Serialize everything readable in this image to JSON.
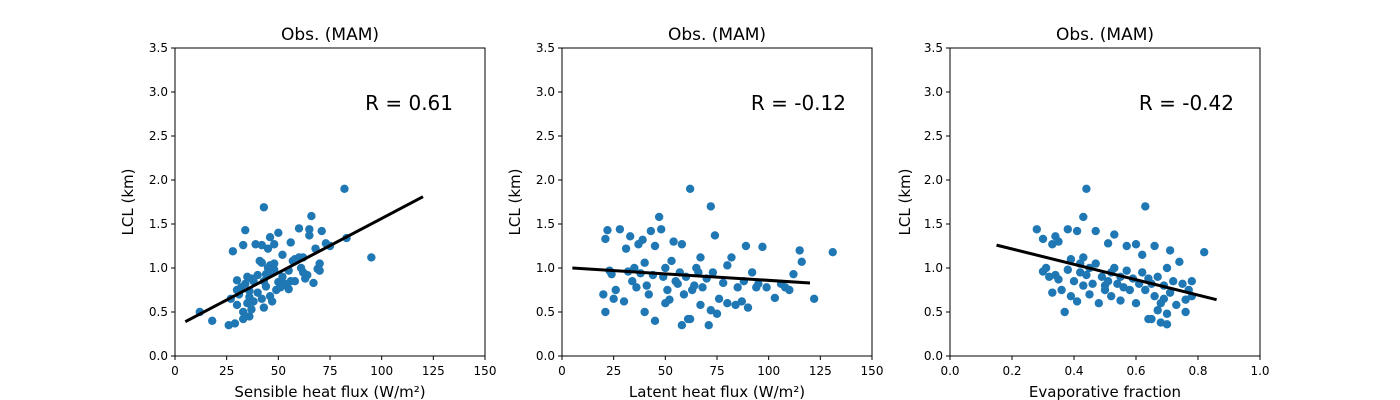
{
  "colors": {
    "marker": "#1f77b4",
    "fit_line": "#000000"
  },
  "chart_data": [
    {
      "type": "scatter",
      "title": "Obs. (MAM)",
      "xlabel": "Sensible heat flux (W/m²)",
      "ylabel": "LCL (km)",
      "xlim": [
        0,
        150
      ],
      "ylim": [
        0,
        3.5
      ],
      "xticks": [
        0,
        25,
        50,
        75,
        100,
        125,
        150
      ],
      "xtick_labels": [
        "0",
        "25",
        "50",
        "75",
        "100",
        "125",
        "150"
      ],
      "yticks": [
        0,
        0.5,
        1,
        1.5,
        2,
        2.5,
        3,
        3.5
      ],
      "ytick_labels": [
        "0.0",
        "0.5",
        "1.0",
        "1.5",
        "2.0",
        "2.5",
        "3.0",
        "3.5"
      ],
      "annotation": "R = 0.61",
      "fit_line": {
        "x": [
          5,
          120
        ],
        "y": [
          0.39,
          1.81
        ]
      },
      "points": [
        [
          12,
          0.5
        ],
        [
          18,
          0.4
        ],
        [
          26,
          0.35
        ],
        [
          27,
          0.65
        ],
        [
          28,
          1.19
        ],
        [
          29,
          0.37
        ],
        [
          30,
          0.58
        ],
        [
          30,
          0.75
        ],
        [
          30,
          0.86
        ],
        [
          31,
          0.7
        ],
        [
          32,
          0.78
        ],
        [
          33,
          1.26
        ],
        [
          33,
          0.42
        ],
        [
          33,
          0.5
        ],
        [
          34,
          1.43
        ],
        [
          34,
          0.82
        ],
        [
          35,
          0.6
        ],
        [
          35,
          0.9
        ],
        [
          36,
          0.45
        ],
        [
          36,
          0.67
        ],
        [
          36,
          0.74
        ],
        [
          37,
          0.53
        ],
        [
          37,
          0.88
        ],
        [
          38,
          0.85
        ],
        [
          38,
          0.62
        ],
        [
          39,
          1.27
        ],
        [
          40,
          0.72
        ],
        [
          40,
          0.92
        ],
        [
          41,
          1.08
        ],
        [
          42,
          0.65
        ],
        [
          42,
          1.06
        ],
        [
          42,
          1.26
        ],
        [
          43,
          0.55
        ],
        [
          43,
          0.85
        ],
        [
          43,
          1.69
        ],
        [
          44,
          0.93
        ],
        [
          44,
          0.79
        ],
        [
          45,
          1.0
        ],
        [
          45,
          1.22
        ],
        [
          46,
          1.35
        ],
        [
          46,
          0.68
        ],
        [
          46,
          1.03
        ],
        [
          47,
          0.62
        ],
        [
          47,
          0.95
        ],
        [
          48,
          0.98
        ],
        [
          48,
          1.27
        ],
        [
          48,
          1.05
        ],
        [
          49,
          0.75
        ],
        [
          50,
          1.4
        ],
        [
          50,
          0.84
        ],
        [
          51,
          0.78
        ],
        [
          52,
          0.9
        ],
        [
          52,
          1.15
        ],
        [
          53,
          0.82
        ],
        [
          54,
          0.8
        ],
        [
          55,
          0.97
        ],
        [
          55,
          0.76
        ],
        [
          56,
          1.29
        ],
        [
          56,
          0.85
        ],
        [
          57,
          1.08
        ],
        [
          58,
          1.1
        ],
        [
          58,
          0.85
        ],
        [
          60,
          1.45
        ],
        [
          60,
          1.12
        ],
        [
          61,
          1.0
        ],
        [
          62,
          0.95
        ],
        [
          62,
          1.12
        ],
        [
          63,
          0.88
        ],
        [
          64,
          0.92
        ],
        [
          65,
          1.44
        ],
        [
          65,
          1.37
        ],
        [
          66,
          1.59
        ],
        [
          67,
          0.83
        ],
        [
          68,
          1.22
        ],
        [
          69,
          0.99
        ],
        [
          70,
          1.05
        ],
        [
          70,
          0.97
        ],
        [
          71,
          1.42
        ],
        [
          73,
          1.28
        ],
        [
          75,
          1.25
        ],
        [
          82,
          1.9
        ],
        [
          83,
          1.34
        ],
        [
          95,
          1.12
        ]
      ]
    },
    {
      "type": "scatter",
      "title": "Obs. (MAM)",
      "xlabel": "Latent heat flux (W/m²)",
      "ylabel": "LCL (km)",
      "xlim": [
        0,
        150
      ],
      "ylim": [
        0,
        3.5
      ],
      "xticks": [
        0,
        25,
        50,
        75,
        100,
        125,
        150
      ],
      "xtick_labels": [
        "0",
        "25",
        "50",
        "75",
        "100",
        "125",
        "150"
      ],
      "yticks": [
        0,
        0.5,
        1,
        1.5,
        2,
        2.5,
        3,
        3.5
      ],
      "ytick_labels": [
        "0.0",
        "0.5",
        "1.0",
        "1.5",
        "2.0",
        "2.5",
        "3.0",
        "3.5"
      ],
      "annotation": "R = -0.12",
      "fit_line": {
        "x": [
          5,
          120
        ],
        "y": [
          1.0,
          0.83
        ]
      },
      "points": [
        [
          20,
          0.7
        ],
        [
          21,
          1.33
        ],
        [
          21,
          0.5
        ],
        [
          22,
          1.43
        ],
        [
          23,
          0.97
        ],
        [
          24,
          0.93
        ],
        [
          25,
          0.65
        ],
        [
          26,
          0.75
        ],
        [
          28,
          1.44
        ],
        [
          30,
          0.62
        ],
        [
          31,
          1.22
        ],
        [
          32,
          0.96
        ],
        [
          33,
          1.36
        ],
        [
          34,
          0.85
        ],
        [
          35,
          1.0
        ],
        [
          36,
          0.78
        ],
        [
          37,
          1.27
        ],
        [
          38,
          0.94
        ],
        [
          39,
          1.32
        ],
        [
          40,
          0.5
        ],
        [
          40,
          1.06
        ],
        [
          41,
          0.8
        ],
        [
          42,
          0.7
        ],
        [
          43,
          1.42
        ],
        [
          44,
          0.92
        ],
        [
          45,
          0.4
        ],
        [
          45,
          1.25
        ],
        [
          47,
          1.58
        ],
        [
          48,
          1.44
        ],
        [
          49,
          0.9
        ],
        [
          50,
          0.6
        ],
        [
          50,
          1.0
        ],
        [
          51,
          0.75
        ],
        [
          52,
          0.64
        ],
        [
          53,
          1.08
        ],
        [
          54,
          1.3
        ],
        [
          55,
          0.85
        ],
        [
          56,
          0.82
        ],
        [
          57,
          0.95
        ],
        [
          58,
          0.35
        ],
        [
          58,
          1.27
        ],
        [
          59,
          0.7
        ],
        [
          60,
          0.9
        ],
        [
          61,
          0.42
        ],
        [
          62,
          0.42
        ],
        [
          62,
          1.9
        ],
        [
          63,
          0.75
        ],
        [
          64,
          0.8
        ],
        [
          65,
          1.0
        ],
        [
          66,
          0.95
        ],
        [
          67,
          1.12
        ],
        [
          67,
          0.58
        ],
        [
          68,
          0.78
        ],
        [
          70,
          0.88
        ],
        [
          71,
          0.35
        ],
        [
          72,
          1.7
        ],
        [
          72,
          0.52
        ],
        [
          73,
          0.95
        ],
        [
          74,
          1.37
        ],
        [
          75,
          0.48
        ],
        [
          76,
          0.65
        ],
        [
          78,
          0.83
        ],
        [
          80,
          0.6
        ],
        [
          80,
          1.03
        ],
        [
          82,
          1.12
        ],
        [
          84,
          0.58
        ],
        [
          85,
          0.78
        ],
        [
          87,
          0.62
        ],
        [
          88,
          0.85
        ],
        [
          89,
          1.25
        ],
        [
          90,
          0.55
        ],
        [
          92,
          0.95
        ],
        [
          94,
          0.78
        ],
        [
          95,
          0.82
        ],
        [
          97,
          1.24
        ],
        [
          99,
          0.78
        ],
        [
          103,
          0.66
        ],
        [
          106,
          0.82
        ],
        [
          108,
          0.78
        ],
        [
          110,
          0.75
        ],
        [
          112,
          0.93
        ],
        [
          115,
          1.2
        ],
        [
          116,
          1.07
        ],
        [
          122,
          0.65
        ],
        [
          131,
          1.18
        ]
      ]
    },
    {
      "type": "scatter",
      "title": "Obs. (MAM)",
      "xlabel": "Evaporative fraction",
      "ylabel": "LCL (km)",
      "xlim": [
        0,
        1
      ],
      "ylim": [
        0,
        3.5
      ],
      "xticks": [
        0,
        0.2,
        0.4,
        0.6,
        0.8,
        1.0
      ],
      "xtick_labels": [
        "0.0",
        "0.2",
        "0.4",
        "0.6",
        "0.8",
        "1.0"
      ],
      "yticks": [
        0,
        0.5,
        1,
        1.5,
        2,
        2.5,
        3,
        3.5
      ],
      "ytick_labels": [
        "0.0",
        "0.5",
        "1.0",
        "1.5",
        "2.0",
        "2.5",
        "3.0",
        "3.5"
      ],
      "annotation": "R = -0.42",
      "fit_line": {
        "x": [
          0.15,
          0.86
        ],
        "y": [
          1.26,
          0.64
        ]
      },
      "points": [
        [
          0.28,
          1.44
        ],
        [
          0.3,
          1.33
        ],
        [
          0.3,
          0.96
        ],
        [
          0.31,
          1.0
        ],
        [
          0.32,
          0.9
        ],
        [
          0.33,
          1.27
        ],
        [
          0.33,
          0.72
        ],
        [
          0.34,
          1.36
        ],
        [
          0.34,
          0.92
        ],
        [
          0.35,
          1.3
        ],
        [
          0.35,
          0.87
        ],
        [
          0.36,
          0.75
        ],
        [
          0.37,
          0.5
        ],
        [
          0.38,
          1.44
        ],
        [
          0.38,
          0.98
        ],
        [
          0.39,
          1.1
        ],
        [
          0.39,
          0.68
        ],
        [
          0.4,
          0.85
        ],
        [
          0.41,
          0.62
        ],
        [
          0.41,
          1.42
        ],
        [
          0.42,
          1.05
        ],
        [
          0.42,
          0.95
        ],
        [
          0.43,
          1.58
        ],
        [
          0.43,
          1.12
        ],
        [
          0.43,
          0.8
        ],
        [
          0.44,
          1.9
        ],
        [
          0.44,
          0.92
        ],
        [
          0.45,
          0.7
        ],
        [
          0.45,
          1.0
        ],
        [
          0.46,
          0.82
        ],
        [
          0.47,
          1.42
        ],
        [
          0.47,
          1.05
        ],
        [
          0.48,
          0.6
        ],
        [
          0.49,
          0.9
        ],
        [
          0.5,
          0.8
        ],
        [
          0.5,
          0.75
        ],
        [
          0.51,
          1.28
        ],
        [
          0.51,
          0.85
        ],
        [
          0.52,
          0.95
        ],
        [
          0.52,
          0.68
        ],
        [
          0.53,
          1.38
        ],
        [
          0.53,
          1.0
        ],
        [
          0.54,
          0.82
        ],
        [
          0.55,
          0.63
        ],
        [
          0.55,
          0.9
        ],
        [
          0.56,
          0.78
        ],
        [
          0.57,
          1.25
        ],
        [
          0.57,
          0.97
        ],
        [
          0.58,
          0.75
        ],
        [
          0.59,
          0.88
        ],
        [
          0.6,
          1.27
        ],
        [
          0.6,
          0.6
        ],
        [
          0.61,
          0.82
        ],
        [
          0.62,
          1.15
        ],
        [
          0.62,
          0.95
        ],
        [
          0.63,
          0.75
        ],
        [
          0.63,
          1.7
        ],
        [
          0.64,
          0.42
        ],
        [
          0.64,
          0.88
        ],
        [
          0.65,
          0.42
        ],
        [
          0.65,
          0.82
        ],
        [
          0.66,
          1.25
        ],
        [
          0.66,
          0.68
        ],
        [
          0.67,
          0.52
        ],
        [
          0.67,
          0.9
        ],
        [
          0.68,
          0.6
        ],
        [
          0.68,
          0.38
        ],
        [
          0.69,
          0.8
        ],
        [
          0.69,
          0.65
        ],
        [
          0.7,
          1.0
        ],
        [
          0.7,
          0.48
        ],
        [
          0.7,
          0.36
        ],
        [
          0.71,
          1.2
        ],
        [
          0.71,
          0.72
        ],
        [
          0.72,
          0.85
        ],
        [
          0.73,
          0.58
        ],
        [
          0.74,
          1.07
        ],
        [
          0.75,
          0.82
        ],
        [
          0.76,
          0.5
        ],
        [
          0.76,
          0.64
        ],
        [
          0.77,
          0.75
        ],
        [
          0.78,
          0.68
        ],
        [
          0.78,
          0.85
        ],
        [
          0.82,
          1.18
        ]
      ]
    }
  ]
}
